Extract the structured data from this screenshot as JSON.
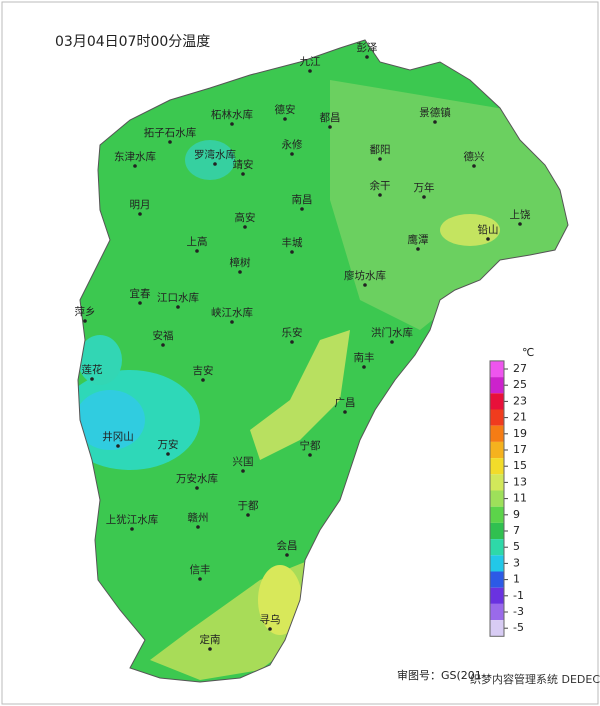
{
  "title": "03月04日07时00分温度",
  "places": [
    "九江",
    "彭泽",
    "柘林水库",
    "德安",
    "都昌",
    "景德镇",
    "拓子石水库",
    "东津水库",
    "罗湾水库",
    "永修",
    "鄱阳",
    "德兴",
    "靖安",
    "余干",
    "万年",
    "明月",
    "高安",
    "南昌",
    "上饶",
    "铅山",
    "上高",
    "丰城",
    "鹰潭",
    "樟树",
    "廖坊水库",
    "宜春",
    "江口水库",
    "萍乡",
    "峡江水库",
    "乐安",
    "洪门水库",
    "安福",
    "南丰",
    "莲花",
    "吉安",
    "广昌",
    "井冈山",
    "万安",
    "宁都",
    "兴国",
    "万安水库",
    "于都",
    "上犹江水库",
    "赣州",
    "会昌",
    "信丰",
    "寻乌",
    "定南"
  ],
  "legend": {
    "unit": "℃",
    "items": [
      {
        "value": 27,
        "color": "#ee55ee"
      },
      {
        "value": 25,
        "color": "#cc22cc"
      },
      {
        "value": 23,
        "color": "#e8103a"
      },
      {
        "value": 21,
        "color": "#f03c1e"
      },
      {
        "value": 19,
        "color": "#f57c14"
      },
      {
        "value": 17,
        "color": "#f5b21e"
      },
      {
        "value": 15,
        "color": "#f2dc2a"
      },
      {
        "value": 13,
        "color": "#d2e85a"
      },
      {
        "value": 11,
        "color": "#9ee05a"
      },
      {
        "value": 9,
        "color": "#5cd44a"
      },
      {
        "value": 7,
        "color": "#30c050"
      },
      {
        "value": 5,
        "color": "#2ed8a8"
      },
      {
        "value": 3,
        "color": "#22c8e8"
      },
      {
        "value": 1,
        "color": "#2c5ae6"
      },
      {
        "value": -1,
        "color": "#6a32e0"
      },
      {
        "value": -3,
        "color": "#9a6aea"
      },
      {
        "value": -5,
        "color": "#d8ccf4"
      }
    ]
  },
  "footer": "审图号：GS(201",
  "watermark": "织梦内容管理系统 DEDECMS.COM"
}
